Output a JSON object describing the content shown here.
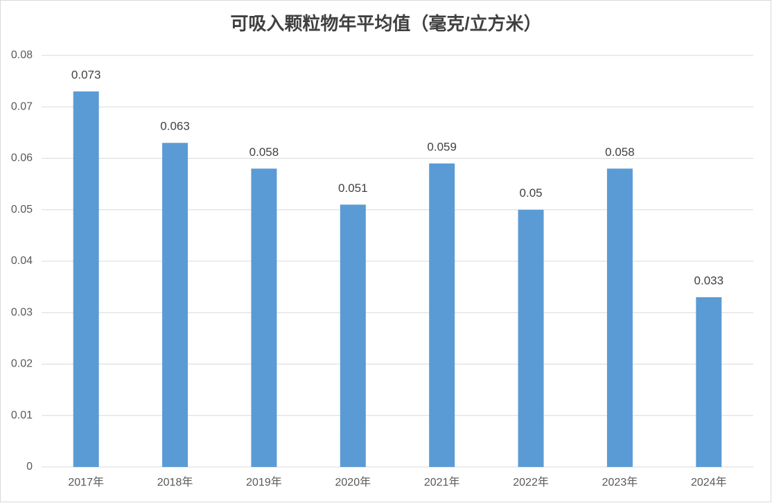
{
  "chart_data": {
    "type": "bar",
    "title": "可吸入颗粒物年平均值（毫克/立方米）",
    "categories": [
      "2017年",
      "2018年",
      "2019年",
      "2020年",
      "2021年",
      "2022年",
      "2023年",
      "2024年"
    ],
    "values": [
      0.073,
      0.063,
      0.058,
      0.051,
      0.059,
      0.05,
      0.058,
      0.033
    ],
    "color": "#5b9bd5",
    "ylim": [
      0,
      0.08
    ],
    "yticks": [
      0,
      0.01,
      0.02,
      0.03,
      0.04,
      0.05,
      0.06,
      0.07,
      0.08
    ],
    "grid": true
  }
}
